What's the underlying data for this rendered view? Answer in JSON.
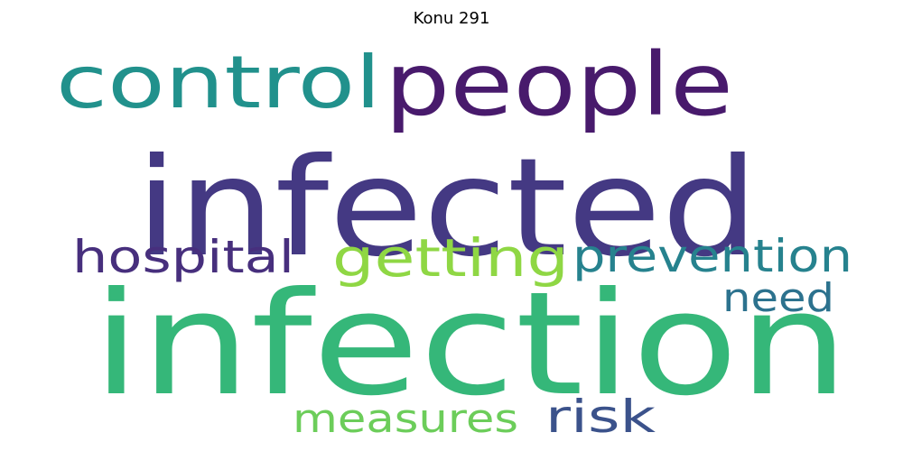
{
  "title": "Konu 291",
  "words": [
    {
      "text": "infection",
      "color": "#35b779"
    },
    {
      "text": "infected",
      "color": "#443983"
    },
    {
      "text": "people",
      "color": "#481a6c"
    },
    {
      "text": "control",
      "color": "#21918c"
    },
    {
      "text": "getting",
      "color": "#8fd744"
    },
    {
      "text": "prevention",
      "color": "#26828e"
    },
    {
      "text": "hospital",
      "color": "#472f7d"
    },
    {
      "text": "need",
      "color": "#2c728e"
    },
    {
      "text": "measures",
      "color": "#6ccd5a"
    },
    {
      "text": "risk",
      "color": "#3b528b"
    }
  ]
}
